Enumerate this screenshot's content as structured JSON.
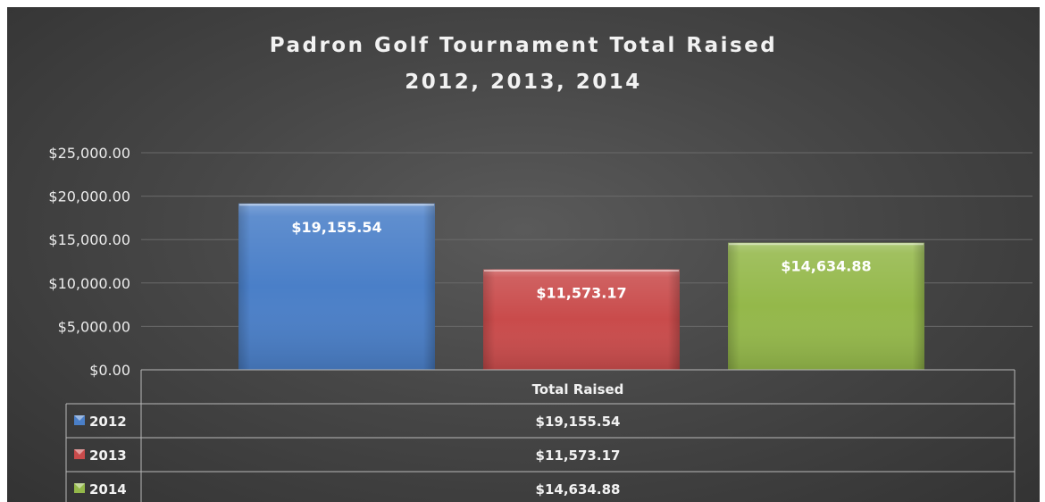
{
  "chart_data": {
    "type": "bar",
    "title": [
      "Padron Golf Tournament Total Raised",
      "2012, 2013, 2014"
    ],
    "categories": [
      "Total Raised"
    ],
    "series": [
      {
        "name": "2012",
        "values": [
          19155.54
        ],
        "label": "$19,155.54",
        "color": "#4a7fc8"
      },
      {
        "name": "2013",
        "values": [
          11573.17
        ],
        "label": "$11,573.17",
        "color": "#c94b4b"
      },
      {
        "name": "2014",
        "values": [
          14634.88
        ],
        "label": "$14,634.88",
        "color": "#94b84a"
      }
    ],
    "ylim": [
      0,
      25000
    ],
    "yticks": [
      0,
      5000,
      10000,
      15000,
      20000,
      25000
    ],
    "ytick_labels": [
      "$0.00",
      "$5,000.00",
      "$10,000.00",
      "$15,000.00",
      "$20,000.00",
      "$25,000.00"
    ],
    "grid": true,
    "legend": "data-table"
  }
}
